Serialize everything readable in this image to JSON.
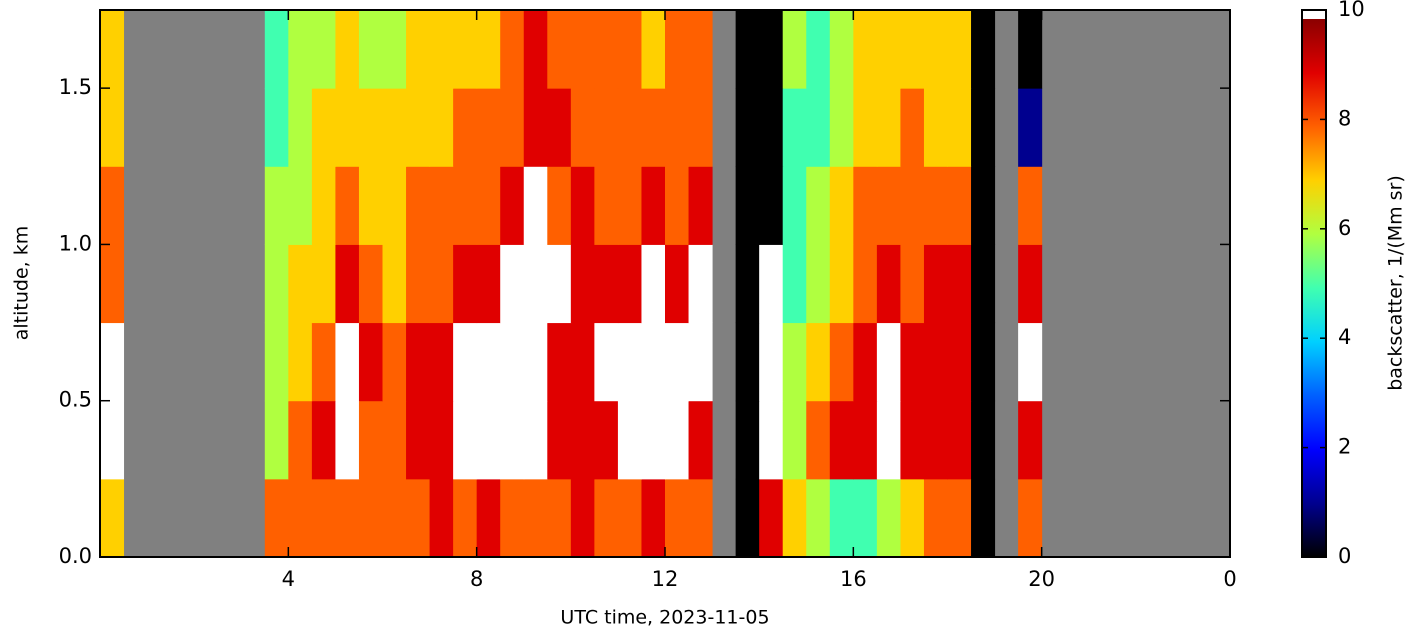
{
  "chart_data": {
    "type": "heatmap",
    "xlabel": "UTC time,  2023-11-05",
    "ylabel": "altitude, km",
    "colorbar_label": "backscatter, 1/(Mm sr)",
    "xlim": [
      0,
      24
    ],
    "xticks": [
      4,
      8,
      12,
      16,
      20,
      {
        "value": 24,
        "label": "0"
      }
    ],
    "ylim": [
      0,
      1.75
    ],
    "yticks": [
      {
        "value": 0,
        "label": "0.0"
      },
      {
        "value": 0.5,
        "label": "0.5"
      },
      {
        "value": 1,
        "label": "1.0"
      },
      {
        "value": 1.5,
        "label": "1.5"
      }
    ],
    "clim": [
      0,
      10
    ],
    "cticks": [
      0,
      2,
      4,
      6,
      8,
      10
    ],
    "colormap": [
      "#000000",
      "#00008f",
      "#0000ff",
      "#0060ff",
      "#00d0ff",
      "#40ffb0",
      "#b0ff40",
      "#ffd000",
      "#ff6000",
      "#e00000",
      "#8b0000"
    ],
    "over_color": "#ffffff",
    "missing_color": "#808080",
    "xbins": [
      0,
      0.5,
      1,
      1.5,
      2,
      2.5,
      3,
      3.5,
      4,
      4.5,
      5,
      5.5,
      6,
      6.5,
      7,
      7.5,
      8,
      8.5,
      9,
      9.5,
      10,
      10.5,
      11,
      11.5,
      12,
      12.5,
      13,
      13.5,
      14,
      14.5,
      15,
      15.5,
      16,
      16.5,
      17,
      17.5,
      18,
      18.5,
      19,
      19.5,
      20,
      20.5,
      21,
      21.5,
      22,
      22.5,
      23,
      23.5,
      24
    ],
    "ybins": [
      0,
      0.25,
      0.5,
      0.75,
      1,
      1.25,
      1.5,
      1.75
    ],
    "z": [
      [
        7,
        null,
        null,
        null,
        null,
        null,
        null,
        8,
        8,
        8,
        8,
        8,
        8,
        8,
        9,
        8,
        9,
        8,
        8,
        8,
        9,
        8,
        8,
        9,
        8,
        8,
        null,
        0,
        9,
        7,
        6,
        5,
        5,
        6,
        7,
        8,
        8,
        0,
        null,
        8,
        null,
        null,
        null,
        null,
        null,
        null,
        null,
        null
      ],
      [
        10,
        null,
        null,
        null,
        null,
        null,
        null,
        6,
        8,
        9,
        10,
        8,
        8,
        9,
        9,
        10,
        10,
        10,
        10,
        9,
        9,
        9,
        10,
        10,
        10,
        9,
        null,
        0,
        10,
        6,
        8,
        9,
        9,
        10,
        9,
        9,
        9,
        0,
        null,
        9,
        null,
        null,
        null,
        null,
        null,
        null,
        null,
        null
      ],
      [
        10,
        null,
        null,
        null,
        null,
        null,
        null,
        6,
        7,
        8,
        10,
        9,
        8,
        9,
        9,
        10,
        10,
        10,
        10,
        9,
        9,
        10,
        10,
        10,
        10,
        10,
        null,
        0,
        10,
        6,
        7,
        8,
        9,
        10,
        9,
        9,
        9,
        0,
        null,
        10,
        null,
        null,
        null,
        null,
        null,
        null,
        null,
        null
      ],
      [
        8,
        null,
        null,
        null,
        null,
        null,
        null,
        6,
        7,
        7,
        9,
        8,
        7,
        8,
        8,
        9,
        9,
        10,
        10,
        10,
        9,
        9,
        9,
        10,
        9,
        10,
        null,
        0,
        10,
        5,
        6,
        7,
        8,
        9,
        8,
        9,
        9,
        0,
        null,
        9,
        null,
        null,
        null,
        null,
        null,
        null,
        null,
        null
      ],
      [
        8,
        null,
        null,
        null,
        null,
        null,
        null,
        6,
        6,
        7,
        8,
        7,
        7,
        8,
        8,
        8,
        8,
        9,
        10,
        8,
        9,
        8,
        8,
        9,
        8,
        9,
        null,
        0,
        0,
        5,
        6,
        7,
        8,
        8,
        8,
        8,
        8,
        0,
        null,
        8,
        null,
        null,
        null,
        null,
        null,
        null,
        null,
        null
      ],
      [
        7,
        null,
        null,
        null,
        null,
        null,
        null,
        5,
        6,
        7,
        7,
        7,
        7,
        7,
        7,
        8,
        8,
        8,
        9,
        9,
        8,
        8,
        8,
        8,
        8,
        8,
        null,
        0,
        0,
        5,
        5,
        6,
        7,
        7,
        8,
        7,
        7,
        0,
        null,
        1,
        null,
        null,
        null,
        null,
        null,
        null,
        null,
        null
      ],
      [
        7,
        null,
        null,
        null,
        null,
        null,
        null,
        5,
        6,
        6,
        7,
        6,
        6,
        7,
        7,
        7,
        7,
        8,
        9,
        8,
        8,
        8,
        8,
        7,
        8,
        8,
        null,
        0,
        0,
        6,
        5,
        6,
        7,
        7,
        7,
        7,
        7,
        0,
        null,
        0,
        null,
        null,
        null,
        null,
        null,
        null,
        null,
        null
      ]
    ]
  }
}
